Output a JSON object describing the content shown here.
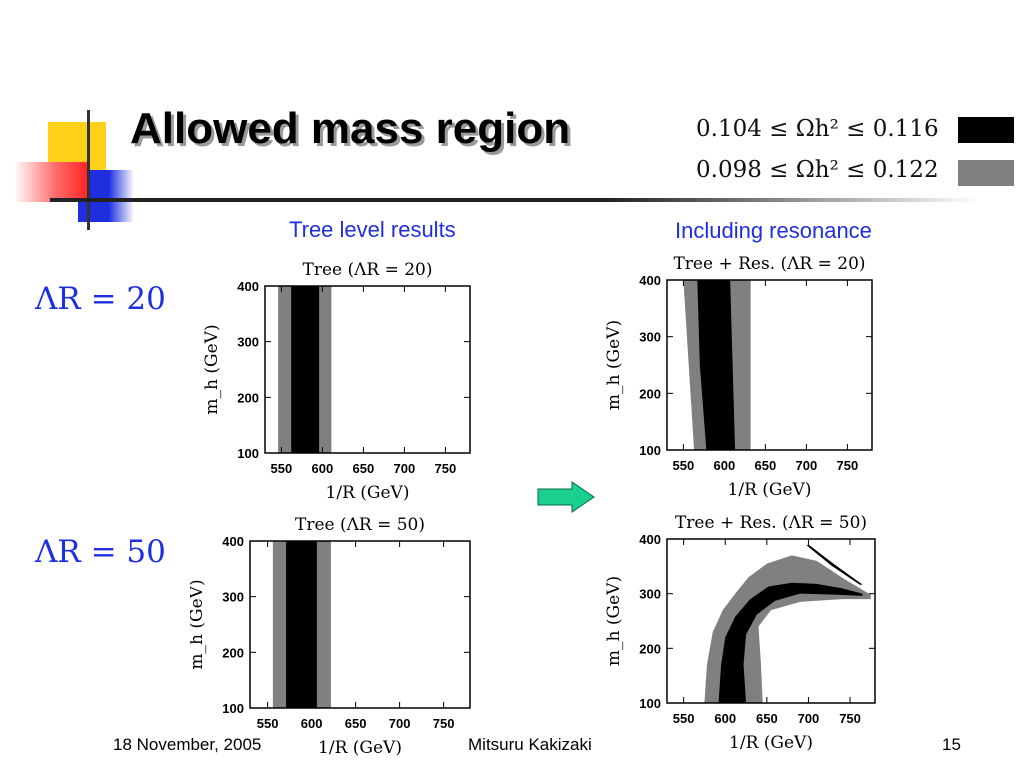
{
  "slide": {
    "title": "Allowed mass region",
    "legend": [
      {
        "label": "0.104 ≤ Ωh² ≤ 0.116",
        "color": "#000000"
      },
      {
        "label": "0.098 ≤ Ωh² ≤ 0.122",
        "color": "#808080"
      }
    ],
    "column_headers": [
      "Tree level results",
      "Including resonance"
    ],
    "row_labels": [
      "ΛR = 20",
      "ΛR = 50"
    ],
    "footer": {
      "date": "18 November, 2005",
      "author": "Mitsuru Kakizaki",
      "page": "15"
    },
    "arrow_color": "#19d08f",
    "accent_colors": {
      "yellow": "#ffd700",
      "blue": "#2233dd",
      "red": "#ff3333"
    }
  },
  "chart_data": [
    {
      "type": "area",
      "title": "Tree (ΛR = 20)",
      "xlabel": "1/R (GeV)",
      "ylabel": "m_h (GeV)",
      "xlim": [
        530,
        780
      ],
      "ylim": [
        100,
        400
      ],
      "xticks": [
        550,
        600,
        650,
        700,
        750
      ],
      "yticks": [
        100,
        200,
        300,
        400
      ],
      "regions": [
        {
          "name": "0.098 ≤ Ωh² ≤ 0.122",
          "color": "#808080",
          "y": [
            100,
            400
          ],
          "x_low": [
            546,
            546
          ],
          "x_high": [
            611,
            611
          ]
        },
        {
          "name": "0.104 ≤ Ωh² ≤ 0.116",
          "color": "#000000",
          "y": [
            100,
            400
          ],
          "x_low": [
            562,
            562
          ],
          "x_high": [
            596,
            596
          ]
        }
      ]
    },
    {
      "type": "area",
      "title": "Tree + Res. (ΛR = 20)",
      "xlabel": "1/R (GeV)",
      "ylabel": "m_h (GeV)",
      "xlim": [
        530,
        780
      ],
      "ylim": [
        100,
        400
      ],
      "xticks": [
        550,
        600,
        650,
        700,
        750
      ],
      "yticks": [
        100,
        200,
        300,
        400
      ],
      "regions": [
        {
          "name": "0.098 ≤ Ωh² ≤ 0.122",
          "color": "#808080",
          "y": [
            100,
            400
          ],
          "x_low": [
            563,
            550
          ],
          "x_high": [
            632,
            632
          ]
        },
        {
          "name": "0.104 ≤ Ωh² ≤ 0.116",
          "color": "#000000",
          "y": [
            100,
            250,
            400
          ],
          "x_low": [
            578,
            570,
            567
          ],
          "x_high": [
            613,
            610,
            607
          ]
        }
      ]
    },
    {
      "type": "area",
      "title": "Tree (ΛR = 50)",
      "xlabel": "1/R (GeV)",
      "ylabel": "m_h (GeV)",
      "xlim": [
        530,
        780
      ],
      "ylim": [
        100,
        400
      ],
      "xticks": [
        550,
        600,
        650,
        700,
        750
      ],
      "yticks": [
        100,
        200,
        300,
        400
      ],
      "regions": [
        {
          "name": "0.098 ≤ Ωh² ≤ 0.122",
          "color": "#808080",
          "y": [
            100,
            400
          ],
          "x_low": [
            556,
            556
          ],
          "x_high": [
            622,
            622
          ]
        },
        {
          "name": "0.104 ≤ Ωh² ≤ 0.116",
          "color": "#000000",
          "y": [
            100,
            400
          ],
          "x_low": [
            571,
            571
          ],
          "x_high": [
            606,
            606
          ]
        }
      ]
    },
    {
      "type": "area",
      "title": "Tree + Res. (ΛR = 50)",
      "xlabel": "1/R (GeV)",
      "ylabel": "m_h (GeV)",
      "xlim": [
        530,
        780
      ],
      "ylim": [
        100,
        400
      ],
      "xticks": [
        550,
        600,
        650,
        700,
        750
      ],
      "yticks": [
        100,
        200,
        300,
        400
      ],
      "regions": [
        {
          "name": "0.098 ≤ Ωh² ≤ 0.122",
          "color": "#808080",
          "points": [
            [
              575,
              100
            ],
            [
              578,
              170
            ],
            [
              585,
              230
            ],
            [
              597,
              270
            ],
            [
              612,
              300
            ],
            [
              628,
              330
            ],
            [
              650,
              355
            ],
            [
              680,
              370
            ],
            [
              710,
              360
            ],
            [
              745,
              325
            ],
            [
              775,
              298
            ],
            [
              775,
              290
            ],
            [
              740,
              290
            ],
            [
              690,
              285
            ],
            [
              655,
              270
            ],
            [
              640,
              240
            ],
            [
              643,
              170
            ],
            [
              645,
              100
            ]
          ]
        },
        {
          "name": "0.104 ≤ Ωh² ≤ 0.116",
          "color": "#000000",
          "points": [
            [
              592,
              100
            ],
            [
              595,
              170
            ],
            [
              600,
              220
            ],
            [
              612,
              258
            ],
            [
              630,
              290
            ],
            [
              652,
              313
            ],
            [
              680,
              320
            ],
            [
              710,
              318
            ],
            [
              740,
              310
            ],
            [
              765,
              300
            ],
            [
              765,
              296
            ],
            [
              735,
              298
            ],
            [
              690,
              300
            ],
            [
              660,
              287
            ],
            [
              638,
              262
            ],
            [
              625,
              225
            ],
            [
              622,
              170
            ],
            [
              625,
              100
            ]
          ]
        },
        {
          "name": "0.104 ≤ Ωh² ≤ 0.116",
          "color": "#000000",
          "points": [
            [
              700,
              390
            ],
            [
              730,
              355
            ],
            [
              760,
              322
            ],
            [
              765,
              317
            ],
            [
              762,
              316
            ],
            [
              727,
              352
            ],
            [
              698,
              388
            ]
          ]
        }
      ]
    }
  ]
}
